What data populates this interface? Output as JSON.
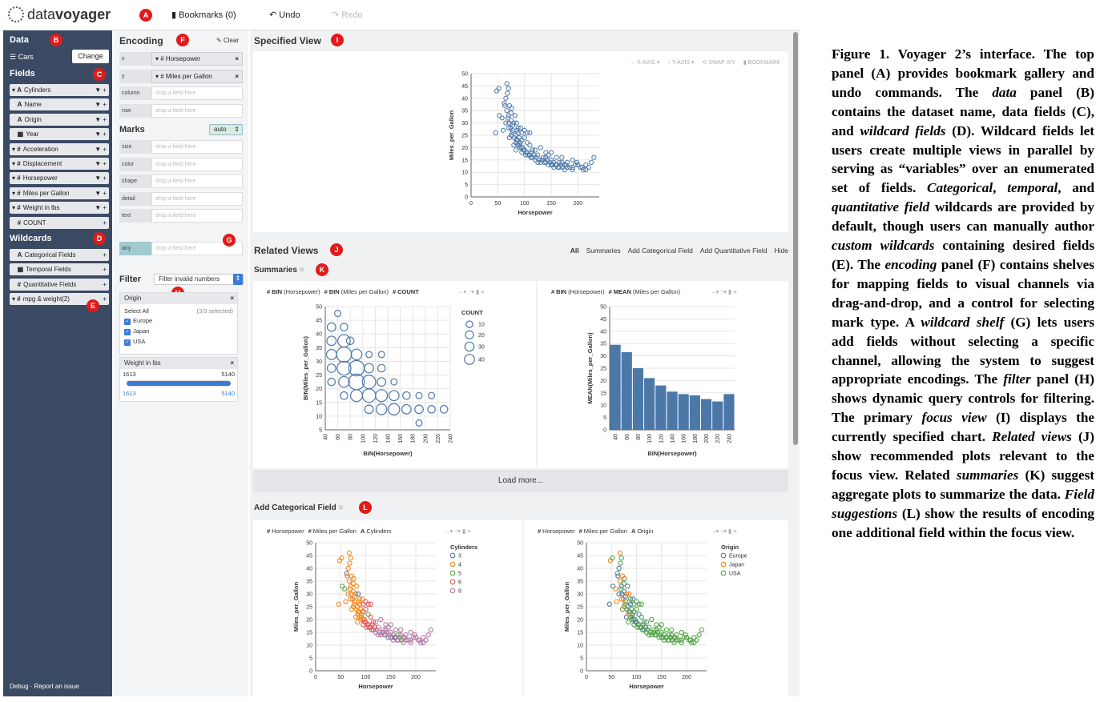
{
  "topbar": {
    "logo_pre": "data",
    "logo_bold": "voyager",
    "bookmarks": "Bookmarks (0)",
    "undo": "Undo",
    "redo": "Redo",
    "badge": "A"
  },
  "data_panel": {
    "title": "Data",
    "badge_data": "B",
    "dataset": "Cars",
    "change": "Change",
    "fields_title": "Fields",
    "badge_fields": "C",
    "fields": [
      {
        "type": "A",
        "name": "Cylinders",
        "caret": "▾",
        "acts": "▼ +"
      },
      {
        "type": "A",
        "name": "Name",
        "caret": "",
        "acts": "▼ +"
      },
      {
        "type": "A",
        "name": "Origin",
        "caret": "",
        "acts": "▼ +"
      },
      {
        "type": "▦",
        "name": "Year",
        "caret": "",
        "acts": "▼ +"
      },
      {
        "type": "#",
        "name": "Acceleration",
        "caret": "▾",
        "acts": "▼ +"
      },
      {
        "type": "#",
        "name": "Displacement",
        "caret": "▾",
        "acts": "▼ +"
      },
      {
        "type": "#",
        "name": "Horsepower",
        "caret": "▾",
        "acts": "▼ +"
      },
      {
        "type": "#",
        "name": "Miles per Gallon",
        "caret": "▾",
        "acts": "▼ +"
      },
      {
        "type": "#",
        "name": "Weight in lbs",
        "caret": "▾",
        "acts": "▼ +"
      },
      {
        "type": "#",
        "name": "COUNT",
        "caret": "",
        "acts": "+"
      }
    ],
    "wildcards_title": "Wildcards",
    "badge_wild": "D",
    "wildcards": [
      {
        "type": "A",
        "name": "Categorical Fields",
        "caret": ""
      },
      {
        "type": "▦",
        "name": "Temporal Fields",
        "caret": ""
      },
      {
        "type": "#",
        "name": "Quantitative Fields",
        "caret": ""
      },
      {
        "type": "#",
        "name": "mpg & weight(2)",
        "caret": "▾"
      }
    ],
    "badge_custom": "E",
    "footer": "Debug  ·  Report an issue"
  },
  "encoding": {
    "title": "Encoding",
    "badge": "F",
    "clear": "Clear",
    "shelves": [
      {
        "label": "x",
        "value": "▾ # Horsepower",
        "filled": true
      },
      {
        "label": "y",
        "value": "▾ # Miles per Gallon",
        "filled": true
      },
      {
        "label": "column",
        "value": "drop a field here",
        "filled": false
      },
      {
        "label": "row",
        "value": "drop a field here",
        "filled": false
      }
    ],
    "marks_title": "Marks",
    "marks_value": "auto",
    "mark_shelves": [
      {
        "label": "size",
        "value": "drop a field here"
      },
      {
        "label": "color",
        "value": "drop a field here"
      },
      {
        "label": "shape",
        "value": "drop a field here"
      },
      {
        "label": "detail",
        "value": "drop a field here"
      },
      {
        "label": "text",
        "value": "drop a field here"
      }
    ],
    "badge_g": "G",
    "wildcard_shelf": {
      "label": "any",
      "value": "drop a field here"
    }
  },
  "filter": {
    "title": "Filter",
    "badge": "H",
    "select": "Filter invalid numbers",
    "origin": {
      "title": "Origin",
      "select_all": "Select All",
      "count": "(3/3 selected)",
      "options": [
        "Europe",
        "Japan",
        "USA"
      ]
    },
    "weight": {
      "title": "Weight in lbs",
      "min": "1613",
      "max": "5140",
      "low": "1613",
      "high": "5140",
      "low_fraction": 0,
      "high_fraction": 1
    }
  },
  "specified": {
    "title": "Specified View",
    "badge": "I",
    "tools": [
      "→ X-AXIS ▾",
      "↑ Y-AXIS ▾",
      "⟲ SWAP X/Y",
      "▮ BOOKMARK"
    ]
  },
  "related": {
    "title": "Related Views",
    "badge": "J",
    "tabs": [
      "All",
      "Summaries",
      "Add Categorical Field",
      "Add Quantitative Field",
      "Hide"
    ],
    "summaries_title": "Summaries",
    "badge_k": "K",
    "sum1_header": [
      "#",
      "BIN",
      "(Horsepower)",
      "#",
      "BIN",
      "(Miles per Gallon)",
      "#",
      "COUNT"
    ],
    "sum2_header": [
      "#",
      "BIN",
      "(Horsepower)",
      "#",
      "MEAN",
      "(Miles per Gallon)"
    ],
    "load_more": "Load more...",
    "addcat_title": "Add Categorical Field",
    "badge_l": "L",
    "cat1_header": [
      "#",
      "Horsepower",
      "#",
      "Miles per Gallon",
      "A",
      "Cylinders"
    ],
    "cat2_header": [
      "#",
      "Horsepower",
      "#",
      "Miles per Gallon",
      "A",
      "Origin"
    ]
  },
  "colors": {
    "blue": "#4c78a8",
    "panel_dark": "#3b4a63",
    "badge_red": "#e01b1b",
    "cyl": [
      "#4c78a8",
      "#f58518",
      "#54a24b",
      "#e45756",
      "#b279a2"
    ],
    "origin": [
      "#4c78a8",
      "#f58518",
      "#54a24b"
    ]
  },
  "chart_data": [
    {
      "id": "specified",
      "type": "scatter",
      "xlabel": "Horsepower",
      "ylabel": "Miles_per_Gallon",
      "xlim": [
        0,
        240
      ],
      "ylim": [
        0,
        50
      ],
      "xticks": [
        0,
        50,
        100,
        150,
        200
      ],
      "yticks": [
        0,
        5,
        10,
        15,
        20,
        25,
        30,
        35,
        40,
        45,
        50
      ],
      "points": [
        [
          46,
          26
        ],
        [
          48,
          43
        ],
        [
          52,
          44
        ],
        [
          53,
          33
        ],
        [
          60,
          27
        ],
        [
          62,
          38
        ],
        [
          65,
          30
        ],
        [
          67,
          35
        ],
        [
          68,
          42
        ],
        [
          70,
          33
        ],
        [
          70,
          28
        ],
        [
          72,
          24
        ],
        [
          75,
          31
        ],
        [
          75,
          25
        ],
        [
          78,
          27
        ],
        [
          80,
          21
        ],
        [
          80,
          30
        ],
        [
          83,
          25
        ],
        [
          85,
          23
        ],
        [
          86,
          27
        ],
        [
          88,
          21
        ],
        [
          88,
          26
        ],
        [
          90,
          24
        ],
        [
          90,
          20
        ],
        [
          92,
          22
        ],
        [
          95,
          18
        ],
        [
          95,
          23
        ],
        [
          97,
          20
        ],
        [
          100,
          19
        ],
        [
          100,
          24
        ],
        [
          102,
          17
        ],
        [
          105,
          18
        ],
        [
          105,
          22
        ],
        [
          110,
          17
        ],
        [
          110,
          21
        ],
        [
          112,
          16
        ],
        [
          115,
          16
        ],
        [
          120,
          15
        ],
        [
          125,
          17
        ],
        [
          130,
          14
        ],
        [
          135,
          16
        ],
        [
          140,
          14
        ],
        [
          145,
          13
        ],
        [
          150,
          15
        ],
        [
          150,
          13
        ],
        [
          155,
          12
        ],
        [
          160,
          13
        ],
        [
          165,
          12
        ],
        [
          170,
          14
        ],
        [
          175,
          13
        ],
        [
          180,
          12
        ],
        [
          190,
          12
        ],
        [
          198,
          14
        ],
        [
          210,
          11
        ],
        [
          215,
          13
        ],
        [
          220,
          12
        ],
        [
          225,
          14
        ],
        [
          230,
          16
        ],
        [
          67,
          46
        ],
        [
          70,
          44
        ],
        [
          63,
          37
        ],
        [
          58,
          32
        ],
        [
          76,
          36
        ],
        [
          82,
          33
        ],
        [
          93,
          28
        ],
        [
          84,
          19
        ],
        [
          110,
          26
        ],
        [
          130,
          20
        ],
        [
          140,
          18
        ],
        [
          150,
          18
        ],
        [
          160,
          16
        ],
        [
          170,
          16
        ],
        [
          175,
          11
        ],
        [
          190,
          15
        ],
        [
          200,
          13
        ],
        [
          65,
          40
        ],
        [
          72,
          37
        ],
        [
          75,
          34
        ],
        [
          78,
          29
        ],
        [
          85,
          30
        ],
        [
          88,
          28
        ],
        [
          95,
          26
        ],
        [
          100,
          27
        ],
        [
          105,
          26
        ],
        [
          115,
          19
        ],
        [
          120,
          19
        ],
        [
          125,
          14
        ],
        [
          140,
          16
        ],
        [
          145,
          17
        ],
        [
          155,
          14
        ],
        [
          165,
          14
        ],
        [
          180,
          14
        ],
        [
          190,
          11
        ],
        [
          208,
          12
        ],
        [
          215,
          11
        ],
        [
          69,
          32
        ],
        [
          71,
          30
        ],
        [
          74,
          28
        ],
        [
          77,
          26
        ],
        [
          81,
          24
        ],
        [
          84,
          22
        ],
        [
          87,
          23
        ],
        [
          91,
          21
        ],
        [
          94,
          20
        ],
        [
          98,
          19
        ],
        [
          103,
          18
        ],
        [
          107,
          17
        ],
        [
          113,
          18
        ],
        [
          118,
          17
        ],
        [
          122,
          16
        ],
        [
          128,
          15
        ],
        [
          133,
          15
        ],
        [
          137,
          14
        ],
        [
          142,
          15
        ],
        [
          148,
          14
        ],
        [
          153,
          13
        ],
        [
          158,
          13
        ],
        [
          163,
          12
        ],
        [
          168,
          13
        ],
        [
          172,
          12
        ],
        [
          178,
          13
        ],
        [
          185,
          12
        ],
        [
          195,
          13
        ],
        [
          205,
          12
        ]
      ]
    },
    {
      "id": "summary-count",
      "type": "scatter",
      "xlabel": "BIN(Horsepower)",
      "ylabel": "BIN(Miles_per_Gallon)",
      "xlim": [
        40,
        240
      ],
      "ylim": [
        5,
        50
      ],
      "xticks": [
        40,
        60,
        80,
        100,
        120,
        140,
        160,
        180,
        200,
        220,
        240
      ],
      "yticks": [
        5,
        10,
        15,
        20,
        25,
        30,
        35,
        40,
        45,
        50
      ],
      "legend_title": "COUNT",
      "legend_values": [
        10,
        20,
        30,
        40
      ],
      "points": [
        [
          60,
          47.5,
          2
        ],
        [
          50,
          42.5,
          6
        ],
        [
          70,
          42.5,
          4
        ],
        [
          50,
          37.5,
          8
        ],
        [
          70,
          37.5,
          18
        ],
        [
          80,
          37.5,
          4
        ],
        [
          50,
          32.5,
          10
        ],
        [
          70,
          32.5,
          30
        ],
        [
          90,
          32.5,
          12
        ],
        [
          110,
          32.5,
          2
        ],
        [
          130,
          32.5,
          2
        ],
        [
          50,
          27.5,
          6
        ],
        [
          70,
          27.5,
          24
        ],
        [
          90,
          27.5,
          32
        ],
        [
          110,
          27.5,
          8
        ],
        [
          130,
          27.5,
          4
        ],
        [
          50,
          22.5,
          4
        ],
        [
          70,
          22.5,
          12
        ],
        [
          90,
          22.5,
          34
        ],
        [
          110,
          22.5,
          22
        ],
        [
          130,
          22.5,
          6
        ],
        [
          150,
          22.5,
          2
        ],
        [
          70,
          17.5,
          4
        ],
        [
          90,
          17.5,
          16
        ],
        [
          110,
          17.5,
          22
        ],
        [
          130,
          17.5,
          16
        ],
        [
          150,
          17.5,
          10
        ],
        [
          170,
          17.5,
          4
        ],
        [
          190,
          17.5,
          2
        ],
        [
          210,
          17.5,
          2
        ],
        [
          110,
          12.5,
          6
        ],
        [
          130,
          12.5,
          12
        ],
        [
          150,
          12.5,
          14
        ],
        [
          170,
          12.5,
          8
        ],
        [
          190,
          12.5,
          6
        ],
        [
          210,
          12.5,
          4
        ],
        [
          230,
          12.5,
          4
        ],
        [
          190,
          7.5,
          2
        ]
      ]
    },
    {
      "id": "summary-mean",
      "type": "bar",
      "xlabel": "BIN(Horsepower)",
      "ylabel": "MEAN(Miles_per_Gallon)",
      "ylim": [
        0,
        50
      ],
      "categories": [
        40,
        60,
        80,
        100,
        120,
        140,
        160,
        180,
        200,
        220,
        240
      ],
      "values": [
        34.5,
        31.5,
        25,
        21,
        18,
        15.5,
        14.5,
        14,
        12.5,
        11.5,
        14.5
      ]
    },
    {
      "id": "cat-cylinders",
      "type": "scatter",
      "xlabel": "Horsepower",
      "ylabel": "Miles_per_Gallon",
      "xlim": [
        0,
        240
      ],
      "ylim": [
        0,
        50
      ],
      "legend_title": "Cylinders",
      "legend_values": [
        "3",
        "4",
        "5",
        "6",
        "8"
      ]
    },
    {
      "id": "cat-origin",
      "type": "scatter",
      "xlabel": "Horsepower",
      "ylabel": "Miles_per_Gallon",
      "xlim": [
        0,
        240
      ],
      "ylim": [
        0,
        50
      ],
      "legend_title": "Origin",
      "legend_values": [
        "Europe",
        "Japan",
        "USA"
      ]
    }
  ],
  "caption": {
    "html": "Figure 1. Voyager 2’s interface. The top panel (A) provides bookmark gallery and undo commands. The <i>data</i> panel (B) contains the dataset name, data fields (C), and <i>wildcard fields</i> (D). Wildcard fields let users create multiple views in parallel by serving as “variables” over an enumerated set of fields. <i>Categorical</i>, <i>temporal</i>, and <i>quantitative field</i> wildcards are provided by default, though users can manually author <i>custom wildcards</i> containing desired fields (E). The <i>encoding</i> panel (F) contains shelves for mapping fields to visual channels via drag-and-drop, and a control for selecting mark type. A <i>wildcard shelf</i> (G) lets users add fields without selecting a specific channel, allowing the system to suggest appropriate encodings. The <i>filter</i> panel (H) shows dynamic query controls for filtering. The primary <i>focus view</i> (I) displays the currently specified chart. <i>Related views</i> (J) show recommended plots relevant to the focus view. Related <i>summaries</i> (K) suggest aggregate plots to summarize the data. <i>Field suggestions</i> (L) show the results of encoding one additional field within the focus view."
  }
}
